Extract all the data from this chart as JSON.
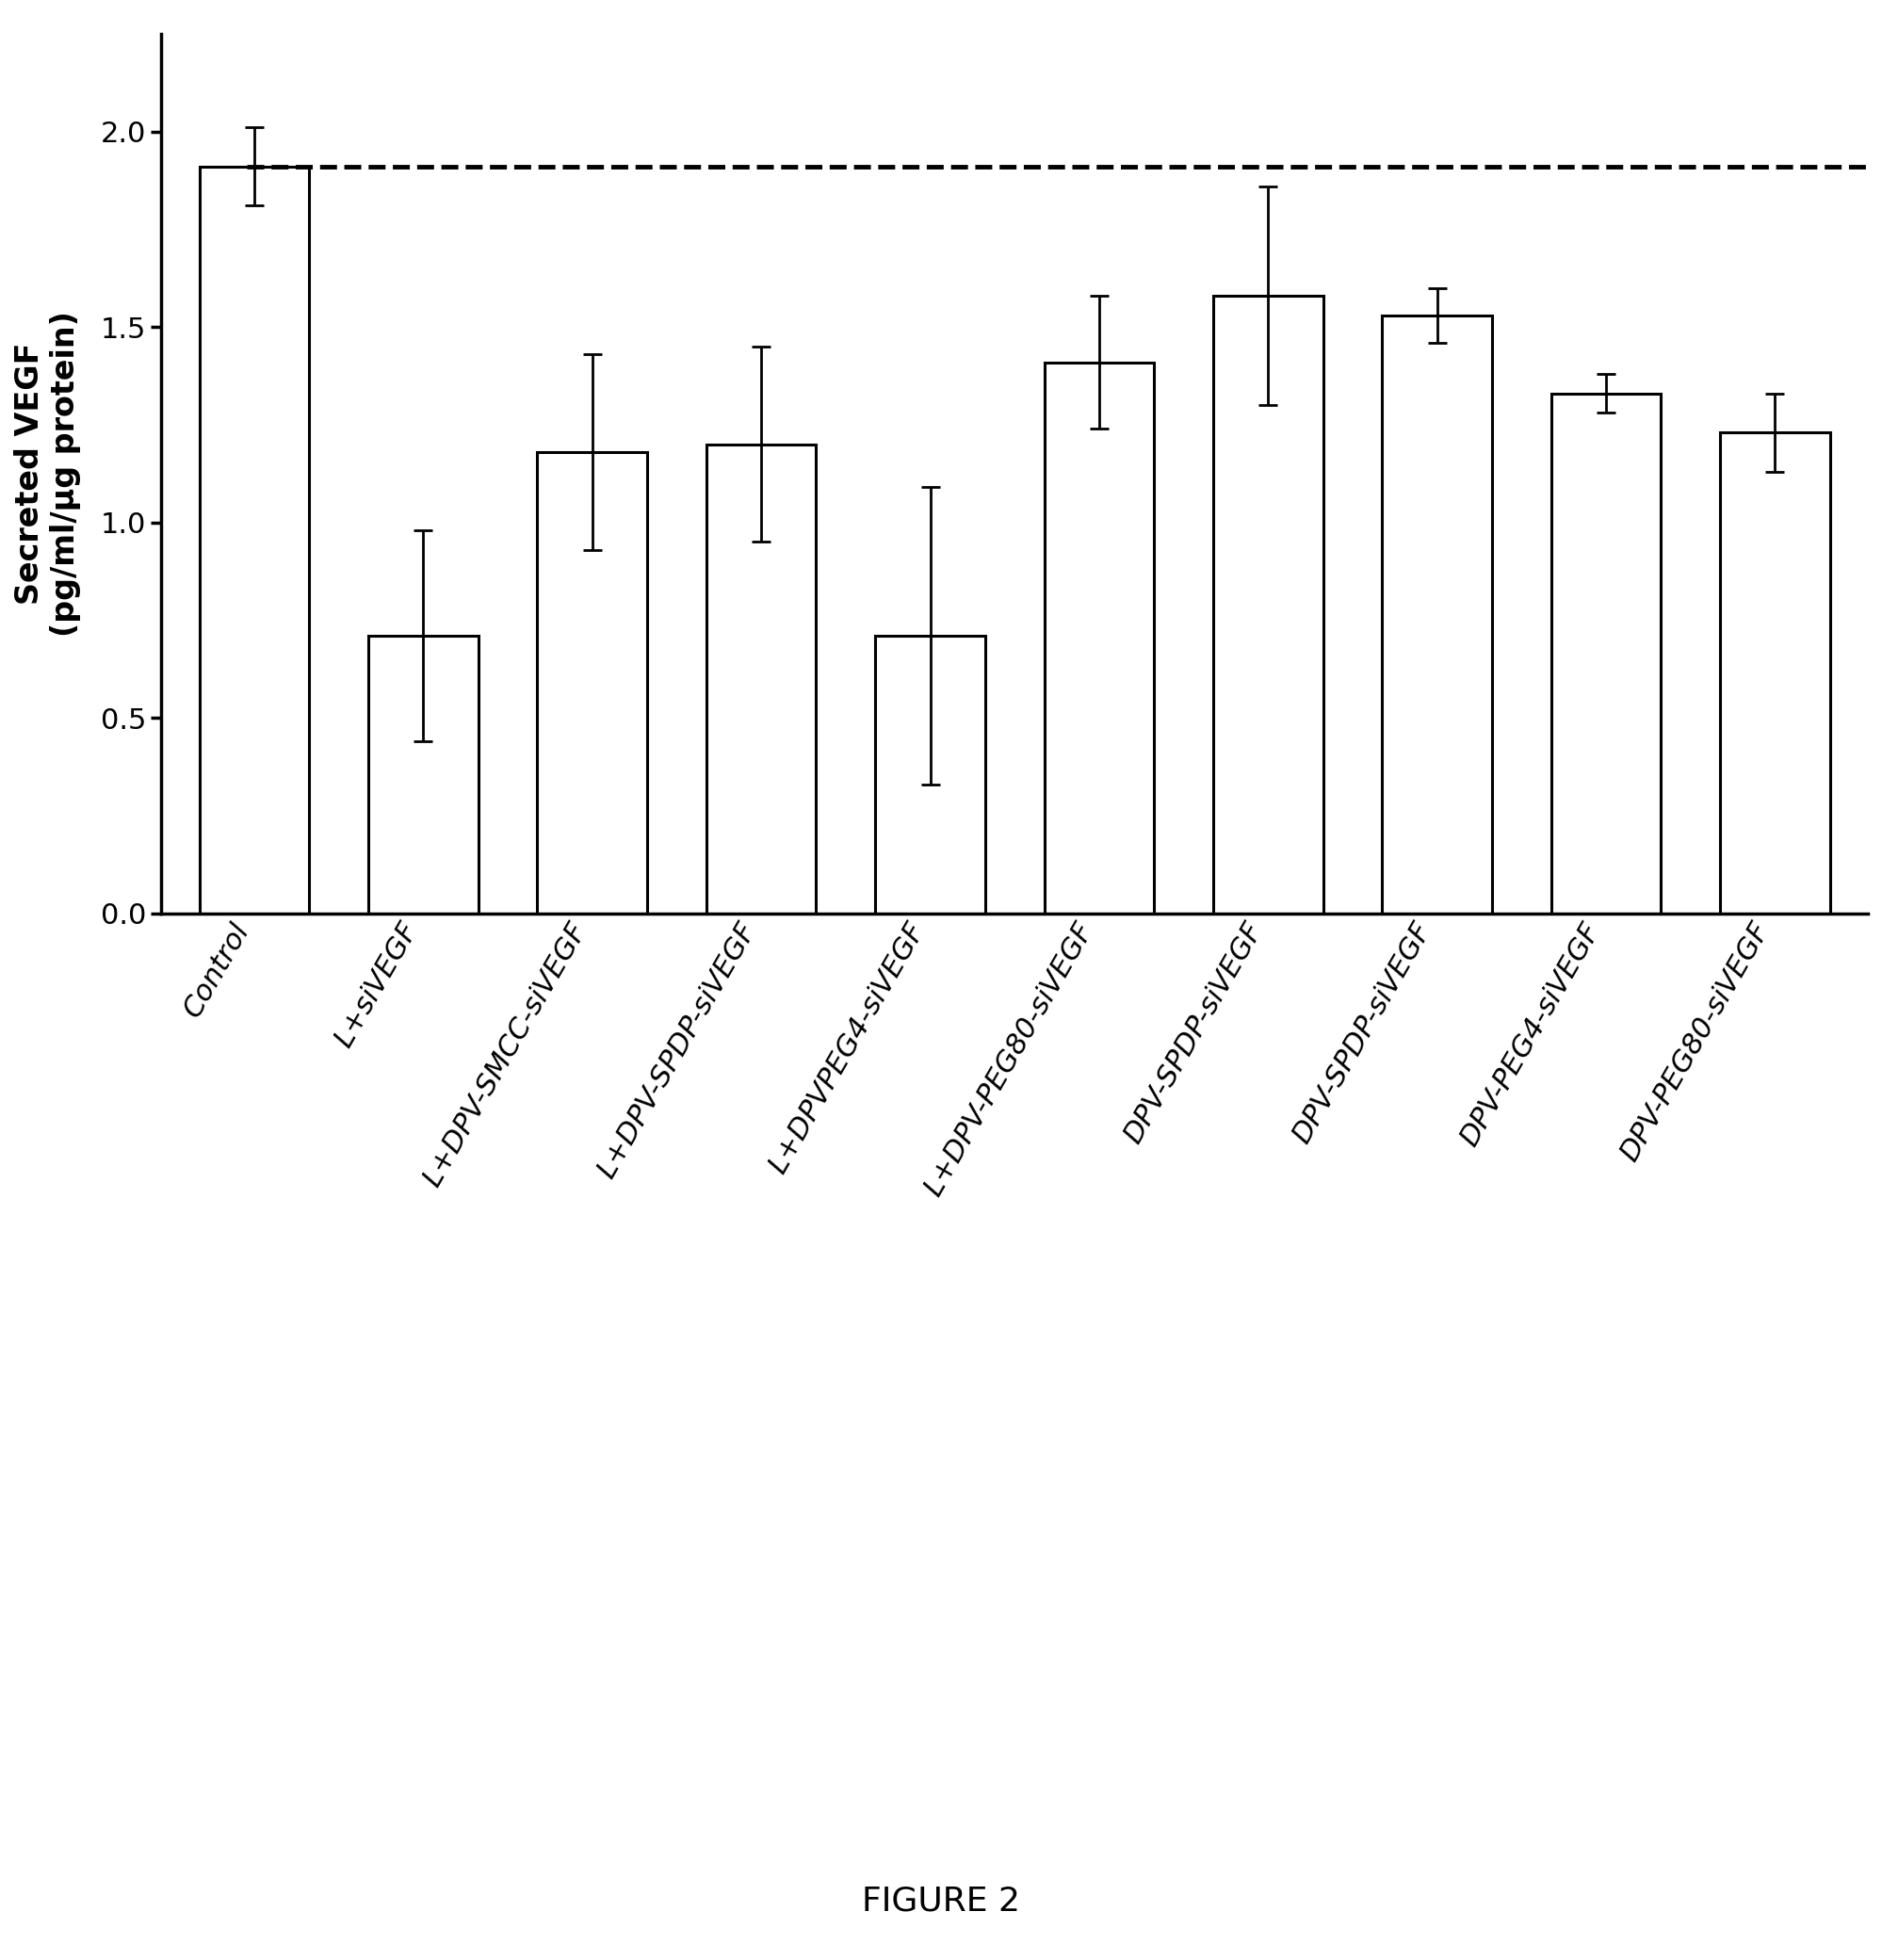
{
  "x_labels": [
    "Control",
    "L+siVEGF",
    "L+DPV-SMCC-siVEGF",
    "L+DPV-SPDP-siVEGF",
    "L+DPVPEG4-siVEGF",
    "L+DPV-PEG80-siVEGF",
    "DPV-SPDP-siVEGF",
    "DPV-SPDP-siVEGF",
    "DPV-PEG4-siVEGF",
    "DPV-PEG80-siVEGF"
  ],
  "values": [
    1.91,
    0.71,
    1.18,
    1.2,
    0.71,
    1.41,
    1.58,
    1.53,
    1.33,
    1.23
  ],
  "errors_upper": [
    0.1,
    0.27,
    0.25,
    0.25,
    0.38,
    0.17,
    0.28,
    0.07,
    0.05,
    0.1
  ],
  "errors_lower": [
    0.1,
    0.27,
    0.25,
    0.25,
    0.38,
    0.17,
    0.28,
    0.07,
    0.05,
    0.1
  ],
  "dashed_line_y": 1.91,
  "ylabel_line1": "Secreted VEGF",
  "ylabel_line2": "(pg/ml/µg protein)",
  "ylim": [
    0.0,
    2.25
  ],
  "yticks": [
    0.0,
    0.5,
    1.0,
    1.5,
    2.0
  ],
  "figure_label": "FIGURE 2",
  "bar_color": "white",
  "bar_edgecolor": "black",
  "bar_linewidth": 2.2,
  "capsize": 7,
  "error_linewidth": 2.0,
  "dashed_linewidth": 3.5,
  "tick_label_rotation": 60,
  "font_size_ticks": 22,
  "font_size_ylabel": 24,
  "font_size_figure_label": 26,
  "spine_linewidth": 2.5
}
